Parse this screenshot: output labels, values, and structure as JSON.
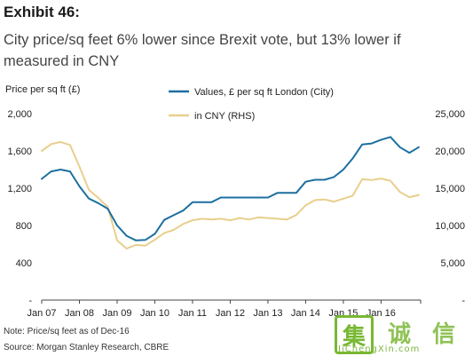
{
  "header": {
    "exhibit": "Exhibit 46:",
    "title": "City price/sq feet 6% lower since Brexit vote, but 13% lower if measured in CNY"
  },
  "colors": {
    "gbp_series": "#1d6fa0",
    "cny_series": "#e8cf8d",
    "axis": "#444444"
  },
  "chart_data": {
    "type": "line",
    "ylabel_left": "Price per sq ft (£)",
    "y_left_ticks": [
      "2,000",
      "1,600",
      "1,200",
      "800",
      "400",
      "-"
    ],
    "ylim_left": [
      0,
      2000
    ],
    "y_right_ticks": [
      "25,000",
      "20,000",
      "15,000",
      "10,000",
      "5,000",
      "-"
    ],
    "ylim_right": [
      0,
      25000
    ],
    "x_tick_labels": [
      "Jan 07",
      "Jan 08",
      "Jan 09",
      "Jan 10",
      "Jan 11",
      "Jan 12",
      "Jan 13",
      "Jan 14",
      "Jan 15",
      "Jan 16"
    ],
    "series": [
      {
        "name": "Values, £ per sq ft London (City)",
        "axis": "left",
        "color": "#1d6fa0",
        "points": [
          [
            2007.0,
            1300
          ],
          [
            2007.25,
            1380
          ],
          [
            2007.5,
            1400
          ],
          [
            2007.75,
            1380
          ],
          [
            2008.0,
            1220
          ],
          [
            2008.25,
            1090
          ],
          [
            2008.5,
            1040
          ],
          [
            2008.75,
            980
          ],
          [
            2009.0,
            800
          ],
          [
            2009.25,
            690
          ],
          [
            2009.5,
            640
          ],
          [
            2009.75,
            645
          ],
          [
            2010.0,
            710
          ],
          [
            2010.25,
            860
          ],
          [
            2010.5,
            910
          ],
          [
            2010.75,
            960
          ],
          [
            2011.0,
            1050
          ],
          [
            2011.25,
            1050
          ],
          [
            2011.5,
            1050
          ],
          [
            2011.75,
            1100
          ],
          [
            2012.0,
            1100
          ],
          [
            2012.25,
            1100
          ],
          [
            2012.5,
            1100
          ],
          [
            2012.75,
            1100
          ],
          [
            2013.0,
            1100
          ],
          [
            2013.25,
            1150
          ],
          [
            2013.5,
            1150
          ],
          [
            2013.75,
            1150
          ],
          [
            2014.0,
            1270
          ],
          [
            2014.25,
            1290
          ],
          [
            2014.5,
            1290
          ],
          [
            2014.75,
            1320
          ],
          [
            2015.0,
            1400
          ],
          [
            2015.25,
            1520
          ],
          [
            2015.5,
            1670
          ],
          [
            2015.75,
            1680
          ],
          [
            2016.0,
            1720
          ],
          [
            2016.25,
            1750
          ],
          [
            2016.5,
            1640
          ],
          [
            2016.75,
            1580
          ],
          [
            2017.0,
            1640
          ]
        ]
      },
      {
        "name": "in CNY (RHS)",
        "axis": "right",
        "color": "#e8cf8d",
        "points": [
          [
            2007.0,
            20000
          ],
          [
            2007.25,
            20900
          ],
          [
            2007.5,
            21200
          ],
          [
            2007.75,
            20800
          ],
          [
            2008.0,
            17900
          ],
          [
            2008.25,
            14800
          ],
          [
            2008.5,
            13700
          ],
          [
            2008.75,
            12500
          ],
          [
            2009.0,
            8000
          ],
          [
            2009.25,
            6900
          ],
          [
            2009.5,
            7400
          ],
          [
            2009.75,
            7300
          ],
          [
            2010.0,
            8100
          ],
          [
            2010.25,
            9000
          ],
          [
            2010.5,
            9400
          ],
          [
            2010.75,
            10200
          ],
          [
            2011.0,
            10700
          ],
          [
            2011.25,
            10900
          ],
          [
            2011.5,
            10800
          ],
          [
            2011.75,
            10900
          ],
          [
            2012.0,
            10700
          ],
          [
            2012.25,
            11000
          ],
          [
            2012.5,
            10800
          ],
          [
            2012.75,
            11100
          ],
          [
            2013.0,
            11000
          ],
          [
            2013.25,
            10900
          ],
          [
            2013.5,
            10800
          ],
          [
            2013.75,
            11400
          ],
          [
            2014.0,
            12700
          ],
          [
            2014.25,
            13400
          ],
          [
            2014.5,
            13500
          ],
          [
            2014.75,
            13200
          ],
          [
            2015.0,
            13600
          ],
          [
            2015.25,
            14000
          ],
          [
            2015.5,
            16200
          ],
          [
            2015.75,
            16100
          ],
          [
            2016.0,
            16300
          ],
          [
            2016.25,
            16000
          ],
          [
            2016.5,
            14500
          ],
          [
            2016.75,
            13800
          ],
          [
            2017.0,
            14100
          ]
        ]
      }
    ],
    "legend_placement": "top-center",
    "grid": false
  },
  "footer": {
    "note": "Note: Price/sq feet as of Dec-16",
    "source": "Source: Morgan Stanley Research, CBRE"
  },
  "watermark": {
    "glyph_1": "集",
    "glyph_2": "诚",
    "glyph_3": "信",
    "domain": "JiChengXin.com"
  }
}
